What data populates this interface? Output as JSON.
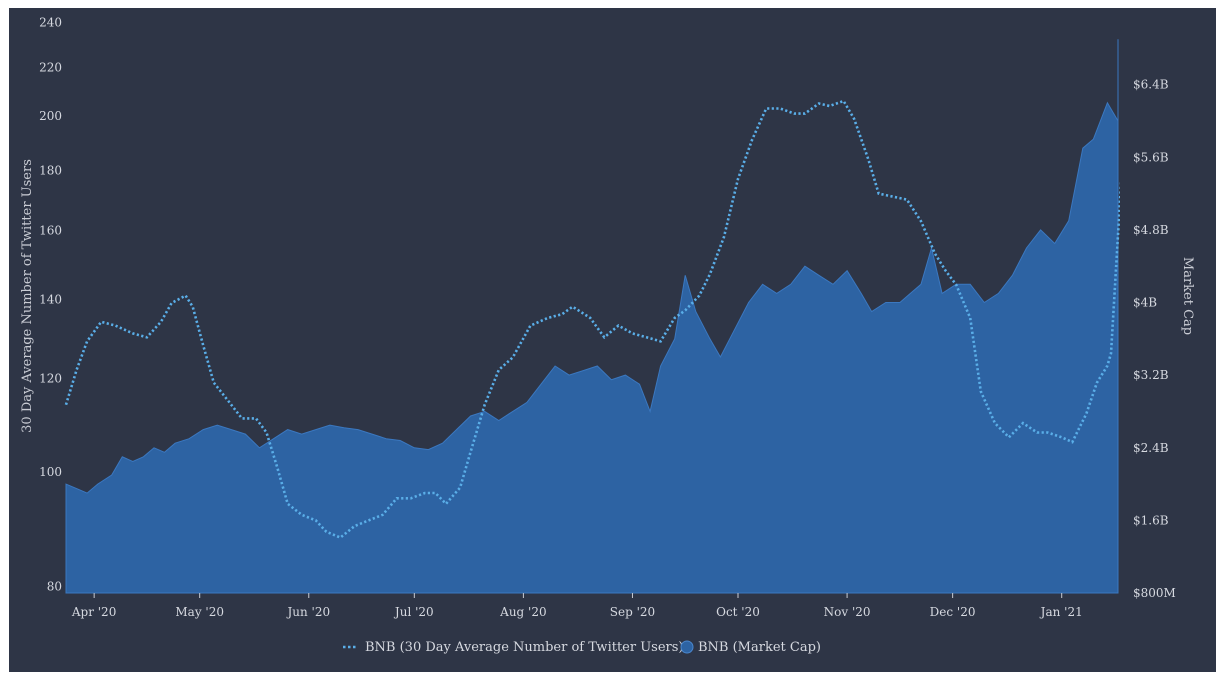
{
  "chart_data": {
    "type": "area",
    "title": "",
    "x_start": "2020-03-24",
    "x_end": "2021-01-17",
    "x_ticks": [
      {
        "label": "Apr '20",
        "date": "2020-04-01"
      },
      {
        "label": "May '20",
        "date": "2020-05-01"
      },
      {
        "label": "Jun '20",
        "date": "2020-06-01"
      },
      {
        "label": "Jul '20",
        "date": "2020-07-01"
      },
      {
        "label": "Aug '20",
        "date": "2020-08-01"
      },
      {
        "label": "Sep '20",
        "date": "2020-09-01"
      },
      {
        "label": "Oct '20",
        "date": "2020-10-01"
      },
      {
        "label": "Nov '20",
        "date": "2020-11-01"
      },
      {
        "label": "Dec '20",
        "date": "2020-12-01"
      },
      {
        "label": "Jan '21",
        "date": "2021-01-01"
      }
    ],
    "y_left": {
      "label": "30 Day Average Number of Twitter Users",
      "scale": "log",
      "range": [
        79,
        245
      ],
      "ticks": [
        {
          "label": "80",
          "value": 80
        },
        {
          "label": "100",
          "value": 100
        },
        {
          "label": "120",
          "value": 120
        },
        {
          "label": "140",
          "value": 140
        },
        {
          "label": "160",
          "value": 160
        },
        {
          "label": "180",
          "value": 180
        },
        {
          "label": "200",
          "value": 200
        },
        {
          "label": "220",
          "value": 220
        },
        {
          "label": "240",
          "value": 240
        }
      ]
    },
    "y_right": {
      "label": "Market Cap",
      "scale": "linear",
      "range": [
        0.8,
        7.2
      ],
      "unit": "billions USD",
      "ticks": [
        {
          "label": "$800M",
          "value": 0.8
        },
        {
          "label": "$1.6B",
          "value": 1.6
        },
        {
          "label": "$2.4B",
          "value": 2.4
        },
        {
          "label": "$3.2B",
          "value": 3.2
        },
        {
          "label": "$4B",
          "value": 4.0
        },
        {
          "label": "$4.8B",
          "value": 4.8
        },
        {
          "label": "$5.6B",
          "value": 5.6
        },
        {
          "label": "$6.4B",
          "value": 6.4
        }
      ]
    },
    "series": [
      {
        "name": "BNB (30 Day Average Number of Twitter Users)",
        "style": "dotted-line",
        "axis": "left",
        "color": "#5aaee8",
        "points": [
          [
            "2020-03-24",
            114
          ],
          [
            "2020-03-27",
            122
          ],
          [
            "2020-03-30",
            129
          ],
          [
            "2020-04-03",
            134
          ],
          [
            "2020-04-07",
            133
          ],
          [
            "2020-04-12",
            131
          ],
          [
            "2020-04-16",
            130
          ],
          [
            "2020-04-20",
            134
          ],
          [
            "2020-04-23",
            139
          ],
          [
            "2020-04-27",
            141
          ],
          [
            "2020-04-29",
            138
          ],
          [
            "2020-05-02",
            128
          ],
          [
            "2020-05-05",
            119
          ],
          [
            "2020-05-09",
            115
          ],
          [
            "2020-05-13",
            111
          ],
          [
            "2020-05-17",
            111
          ],
          [
            "2020-05-20",
            108
          ],
          [
            "2020-05-23",
            101
          ],
          [
            "2020-05-26",
            94
          ],
          [
            "2020-05-30",
            92
          ],
          [
            "2020-06-03",
            91
          ],
          [
            "2020-06-06",
            89
          ],
          [
            "2020-06-10",
            88
          ],
          [
            "2020-06-14",
            90
          ],
          [
            "2020-06-18",
            91
          ],
          [
            "2020-06-22",
            92
          ],
          [
            "2020-06-26",
            95
          ],
          [
            "2020-06-30",
            95
          ],
          [
            "2020-07-04",
            96
          ],
          [
            "2020-07-07",
            96
          ],
          [
            "2020-07-10",
            94
          ],
          [
            "2020-07-14",
            97
          ],
          [
            "2020-07-17",
            104
          ],
          [
            "2020-07-21",
            114
          ],
          [
            "2020-07-25",
            122
          ],
          [
            "2020-07-29",
            125
          ],
          [
            "2020-08-03",
            133
          ],
          [
            "2020-08-08",
            135
          ],
          [
            "2020-08-12",
            136
          ],
          [
            "2020-08-15",
            138
          ],
          [
            "2020-08-20",
            135
          ],
          [
            "2020-08-24",
            130
          ],
          [
            "2020-08-28",
            133
          ],
          [
            "2020-09-01",
            131
          ],
          [
            "2020-09-05",
            130
          ],
          [
            "2020-09-09",
            129
          ],
          [
            "2020-09-13",
            135
          ],
          [
            "2020-09-16",
            137
          ],
          [
            "2020-09-20",
            141
          ],
          [
            "2020-09-23",
            147
          ],
          [
            "2020-09-27",
            158
          ],
          [
            "2020-10-01",
            177
          ],
          [
            "2020-10-05",
            191
          ],
          [
            "2020-10-09",
            203
          ],
          [
            "2020-10-13",
            203
          ],
          [
            "2020-10-17",
            201
          ],
          [
            "2020-10-20",
            201
          ],
          [
            "2020-10-24",
            205
          ],
          [
            "2020-10-27",
            204
          ],
          [
            "2020-10-31",
            206
          ],
          [
            "2020-11-03",
            199
          ],
          [
            "2020-11-07",
            184
          ],
          [
            "2020-11-10",
            172
          ],
          [
            "2020-11-14",
            171
          ],
          [
            "2020-11-18",
            170
          ],
          [
            "2020-11-22",
            163
          ],
          [
            "2020-11-26",
            153
          ],
          [
            "2020-11-29",
            148
          ],
          [
            "2020-12-02",
            144
          ],
          [
            "2020-12-06",
            135
          ],
          [
            "2020-12-09",
            117
          ],
          [
            "2020-12-13",
            110
          ],
          [
            "2020-12-17",
            107
          ],
          [
            "2020-12-21",
            110
          ],
          [
            "2020-12-25",
            108
          ],
          [
            "2020-12-28",
            108
          ],
          [
            "2021-01-01",
            107
          ],
          [
            "2021-01-04",
            106
          ],
          [
            "2021-01-06",
            109
          ],
          [
            "2021-01-08",
            112
          ],
          [
            "2021-01-11",
            119
          ],
          [
            "2021-01-14",
            123
          ],
          [
            "2021-01-15",
            126
          ],
          [
            "2021-01-18",
            178
          ],
          [
            "2021-01-22",
            195
          ],
          [
            "2021-01-26",
            208
          ],
          [
            "2021-01-30",
            221
          ],
          [
            "2021-02-03",
            229
          ],
          [
            "2021-02-07",
            242
          ]
        ]
      },
      {
        "name": "BNB (Market Cap)",
        "style": "area",
        "axis": "right",
        "color": "#2d63a3",
        "points": [
          [
            "2020-03-24",
            2.0
          ],
          [
            "2020-03-27",
            1.95
          ],
          [
            "2020-03-30",
            1.9
          ],
          [
            "2020-04-02",
            2.0
          ],
          [
            "2020-04-06",
            2.1
          ],
          [
            "2020-04-09",
            2.3
          ],
          [
            "2020-04-12",
            2.25
          ],
          [
            "2020-04-15",
            2.3
          ],
          [
            "2020-04-18",
            2.4
          ],
          [
            "2020-04-21",
            2.35
          ],
          [
            "2020-04-24",
            2.45
          ],
          [
            "2020-04-28",
            2.5
          ],
          [
            "2020-05-02",
            2.6
          ],
          [
            "2020-05-06",
            2.65
          ],
          [
            "2020-05-10",
            2.6
          ],
          [
            "2020-05-14",
            2.55
          ],
          [
            "2020-05-18",
            2.4
          ],
          [
            "2020-05-22",
            2.5
          ],
          [
            "2020-05-26",
            2.6
          ],
          [
            "2020-05-30",
            2.55
          ],
          [
            "2020-06-03",
            2.6
          ],
          [
            "2020-06-07",
            2.65
          ],
          [
            "2020-06-11",
            2.62
          ],
          [
            "2020-06-15",
            2.6
          ],
          [
            "2020-06-19",
            2.55
          ],
          [
            "2020-06-23",
            2.5
          ],
          [
            "2020-06-27",
            2.48
          ],
          [
            "2020-07-01",
            2.4
          ],
          [
            "2020-07-05",
            2.38
          ],
          [
            "2020-07-09",
            2.45
          ],
          [
            "2020-07-13",
            2.6
          ],
          [
            "2020-07-17",
            2.75
          ],
          [
            "2020-07-21",
            2.8
          ],
          [
            "2020-07-25",
            2.7
          ],
          [
            "2020-07-29",
            2.8
          ],
          [
            "2020-08-02",
            2.9
          ],
          [
            "2020-08-06",
            3.1
          ],
          [
            "2020-08-10",
            3.3
          ],
          [
            "2020-08-14",
            3.2
          ],
          [
            "2020-08-18",
            3.25
          ],
          [
            "2020-08-22",
            3.3
          ],
          [
            "2020-08-26",
            3.15
          ],
          [
            "2020-08-30",
            3.2
          ],
          [
            "2020-09-03",
            3.1
          ],
          [
            "2020-09-06",
            2.8
          ],
          [
            "2020-09-09",
            3.3
          ],
          [
            "2020-09-13",
            3.6
          ],
          [
            "2020-09-16",
            4.3
          ],
          [
            "2020-09-19",
            3.9
          ],
          [
            "2020-09-23",
            3.6
          ],
          [
            "2020-09-26",
            3.4
          ],
          [
            "2020-09-30",
            3.7
          ],
          [
            "2020-10-04",
            4.0
          ],
          [
            "2020-10-08",
            4.2
          ],
          [
            "2020-10-12",
            4.1
          ],
          [
            "2020-10-16",
            4.2
          ],
          [
            "2020-10-20",
            4.4
          ],
          [
            "2020-10-24",
            4.3
          ],
          [
            "2020-10-28",
            4.2
          ],
          [
            "2020-11-01",
            4.35
          ],
          [
            "2020-11-05",
            4.1
          ],
          [
            "2020-11-08",
            3.9
          ],
          [
            "2020-11-12",
            4.0
          ],
          [
            "2020-11-16",
            4.0
          ],
          [
            "2020-11-19",
            4.1
          ],
          [
            "2020-11-22",
            4.2
          ],
          [
            "2020-11-25",
            4.6
          ],
          [
            "2020-11-28",
            4.1
          ],
          [
            "2020-12-02",
            4.2
          ],
          [
            "2020-12-06",
            4.2
          ],
          [
            "2020-12-10",
            4.0
          ],
          [
            "2020-12-14",
            4.1
          ],
          [
            "2020-12-18",
            4.3
          ],
          [
            "2020-12-22",
            4.6
          ],
          [
            "2020-12-26",
            4.8
          ],
          [
            "2020-12-30",
            4.65
          ],
          [
            "2021-01-03",
            4.9
          ],
          [
            "2021-01-07",
            5.7
          ],
          [
            "2021-01-10",
            5.8
          ],
          [
            "2021-01-14",
            6.2
          ],
          [
            "2021-01-18",
            6.0
          ],
          [
            "2021-01-22",
            5.4
          ],
          [
            "2021-01-26",
            5.8
          ],
          [
            "2021-01-30",
            5.9
          ],
          [
            "2021-02-03",
            6.3
          ],
          [
            "2021-02-07",
            6.9
          ]
        ]
      }
    ],
    "legend": {
      "placement": "bottom-center",
      "entries": [
        {
          "label": "BNB (30 Day Average Number of Twitter Users)",
          "marker": "dotted-line",
          "color": "#5aaee8"
        },
        {
          "label": "BNB (Market Cap)",
          "marker": "circle",
          "color": "#2d63a3"
        }
      ]
    },
    "grid": false
  }
}
